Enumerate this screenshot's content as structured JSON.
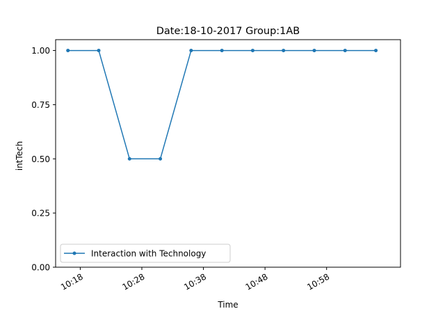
{
  "chart_data": {
    "type": "line",
    "title": "Date:18-10-2017  Group:1AB",
    "xlabel": "Time",
    "ylabel": "intTech",
    "x": [
      "10:16",
      "10:21",
      "10:26",
      "10:31",
      "10:36",
      "10:41",
      "10:46",
      "10:51",
      "10:56",
      "11:01",
      "11:06"
    ],
    "x_ticks": [
      "10:18",
      "10:28",
      "10:38",
      "10:48",
      "10:58"
    ],
    "xlim": [
      "10:14",
      "11:10"
    ],
    "y_ticks": [
      "0.00",
      "0.25",
      "0.50",
      "0.75",
      "1.00"
    ],
    "ylim": [
      0,
      1.05
    ],
    "grid": false,
    "legend_position": "lower-left",
    "series": [
      {
        "name": "Interaction with Technology",
        "color": "#1f77b4",
        "marker": "point",
        "values": [
          1,
          1,
          0.5,
          0.5,
          1,
          1,
          1,
          1,
          1,
          1,
          1
        ]
      }
    ]
  }
}
